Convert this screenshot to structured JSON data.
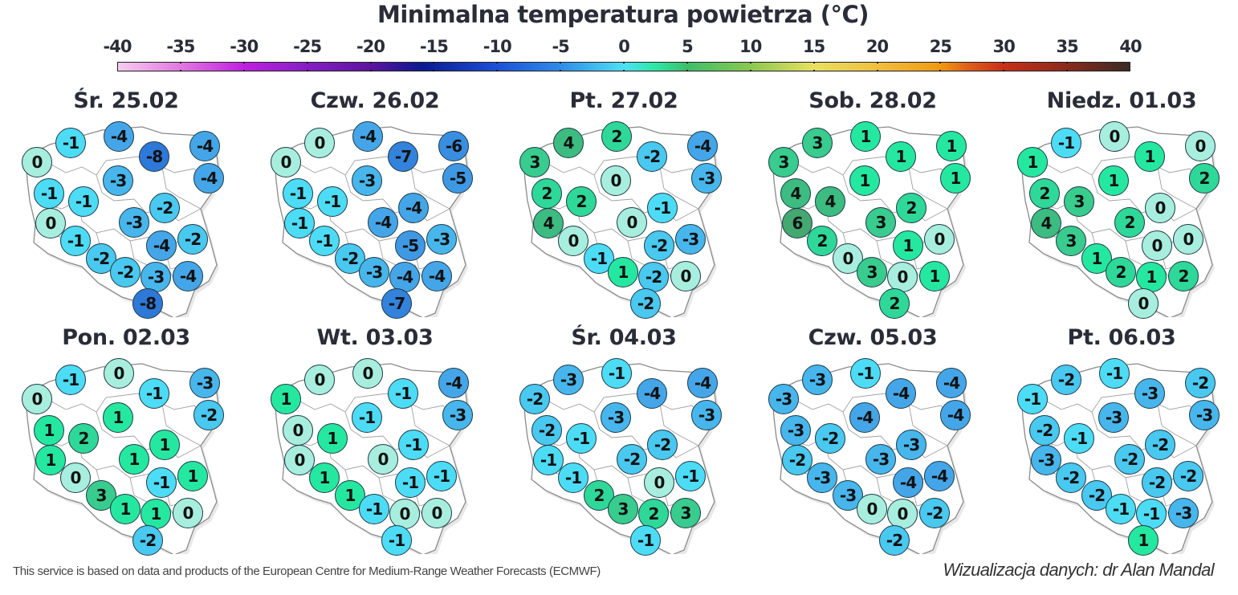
{
  "title": "Minimalna temperatura powietrza (°C)",
  "colorbar": {
    "ticks": [
      "-40",
      "-35",
      "-30",
      "-25",
      "-20",
      "-15",
      "-10",
      "-5",
      "0",
      "5",
      "10",
      "15",
      "20",
      "25",
      "30",
      "35",
      "40"
    ],
    "min": -40,
    "max": 40
  },
  "footer": {
    "source": "This service is based on data and products of the European Centre for Medium-Range Weather Forecasts (ECMWF)",
    "credit": "Wizualizacja danych: dr Alan Mandal"
  },
  "colors": {
    "temp_-8": "#2e78d8",
    "temp_-7": "#3382dc",
    "temp_-6": "#3a8ee0",
    "temp_-5": "#3f98e4",
    "temp_-4": "#44a6e8",
    "temp_-3": "#47b6ec",
    "temp_-2": "#49c8f0",
    "temp_-1": "#4ddcf6",
    "temp_0": "#a8eede",
    "temp_1": "#25e8a0",
    "temp_2": "#2ed898",
    "temp_3": "#38cc8e",
    "temp_4": "#3cbc80",
    "temp_6": "#44a870"
  },
  "chart_data": {
    "type": "table",
    "title": "Minimalna temperatura powietrza (°C)",
    "legend": "colorbar from -40 to 40 °C, step 5",
    "point_order": [
      "NW-coast-west",
      "NW-coast",
      "N-coast-center",
      "N-east-1",
      "NE-corner",
      "N-center",
      "NE-2",
      "W-1",
      "W-center",
      "C-east",
      "W-2",
      "C",
      "SW-1",
      "C-south-east",
      "E",
      "SW-2",
      "S-1",
      "S-2",
      "SE",
      "S-tip"
    ],
    "days": [
      {
        "label": "Śr. 25.02",
        "values": [
          0,
          -1,
          -4,
          -8,
          -4,
          -3,
          -4,
          -1,
          -1,
          -2,
          0,
          -3,
          -1,
          -4,
          -2,
          -2,
          -2,
          -3,
          -4,
          -8
        ]
      },
      {
        "label": "Czw. 26.02",
        "values": [
          0,
          0,
          -4,
          -7,
          -6,
          -3,
          -5,
          -1,
          -1,
          -4,
          -1,
          -4,
          -1,
          -5,
          -3,
          -2,
          -3,
          -4,
          -4,
          -7
        ]
      },
      {
        "label": "Pt. 27.02",
        "values": [
          3,
          4,
          2,
          -2,
          -4,
          0,
          -3,
          2,
          2,
          -1,
          4,
          0,
          0,
          -2,
          -3,
          -1,
          1,
          -2,
          0,
          -2
        ]
      },
      {
        "label": "Sob. 28.02",
        "values": [
          3,
          3,
          1,
          1,
          1,
          1,
          1,
          4,
          4,
          2,
          6,
          3,
          2,
          1,
          0,
          0,
          3,
          0,
          1,
          2
        ]
      },
      {
        "label": "Niedz. 01.03",
        "values": [
          1,
          -1,
          0,
          1,
          0,
          1,
          2,
          2,
          3,
          0,
          4,
          2,
          3,
          0,
          0,
          1,
          2,
          1,
          2,
          0
        ]
      },
      {
        "label": "Pon. 02.03",
        "values": [
          0,
          -1,
          0,
          -1,
          -3,
          1,
          -2,
          1,
          2,
          1,
          1,
          1,
          0,
          -1,
          1,
          3,
          1,
          1,
          0,
          -2
        ]
      },
      {
        "label": "Wt. 03.03",
        "values": [
          1,
          0,
          0,
          -1,
          -4,
          -1,
          -3,
          0,
          1,
          -1,
          0,
          0,
          1,
          -1,
          -1,
          1,
          -1,
          0,
          0,
          -1
        ]
      },
      {
        "label": "Śr. 04.03",
        "values": [
          -2,
          -3,
          -1,
          -4,
          -4,
          -3,
          -3,
          -2,
          -1,
          -2,
          -1,
          -2,
          -1,
          0,
          -1,
          2,
          3,
          2,
          3,
          -1
        ]
      },
      {
        "label": "Czw. 05.03",
        "values": [
          -3,
          -3,
          -1,
          -4,
          -4,
          -4,
          -4,
          -3,
          -2,
          -3,
          -2,
          -3,
          -3,
          -4,
          -4,
          -3,
          0,
          0,
          -2,
          -2
        ]
      },
      {
        "label": "Pt. 06.03",
        "values": [
          -1,
          -2,
          -1,
          -3,
          -2,
          -3,
          -3,
          -2,
          -1,
          -2,
          -3,
          -2,
          -2,
          -2,
          -2,
          -2,
          -1,
          -1,
          -3,
          1
        ]
      }
    ]
  }
}
